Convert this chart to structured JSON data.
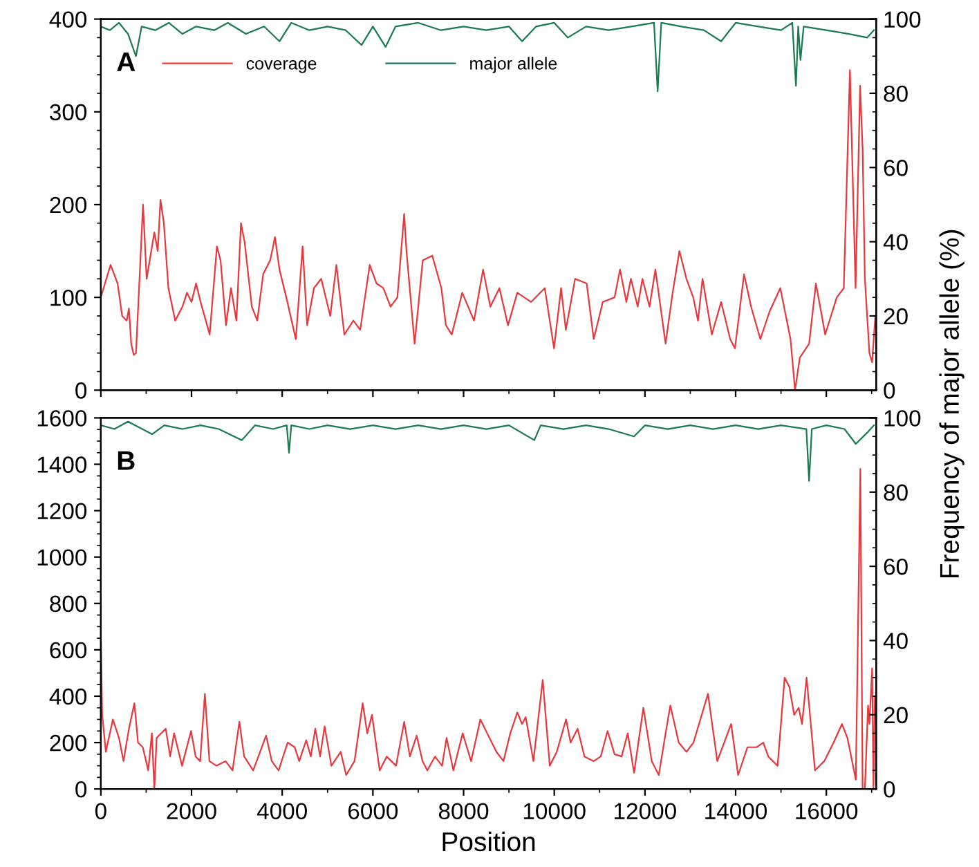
{
  "chart_data": [
    {
      "type": "line",
      "xlim": [
        0,
        17100
      ],
      "xticks": [
        0,
        2000,
        4000,
        6000,
        8000,
        10000,
        12000,
        14000,
        16000
      ],
      "ylim": [
        0,
        400
      ],
      "yticks": [
        0,
        100,
        200,
        300,
        400
      ],
      "y2lim": [
        0,
        100
      ],
      "y2ticks": [
        0,
        20,
        40,
        60,
        80,
        100
      ],
      "y2label": "Frequency of major allele (%)",
      "tick_labels": "y",
      "grid": false,
      "legend": "top left",
      "annotations": [
        "A"
      ],
      "series": [
        {
          "name": "coverage",
          "color": "#e8383d",
          "x": [
            0,
            60,
            215,
            370,
            470,
            570,
            620,
            670,
            725,
            775,
            930,
            1010,
            1180,
            1255,
            1315,
            1390,
            1490,
            1640,
            1800,
            1900,
            2000,
            2100,
            2200,
            2400,
            2560,
            2640,
            2760,
            2870,
            2990,
            3090,
            3170,
            3330,
            3450,
            3580,
            3735,
            3840,
            3940,
            4090,
            4300,
            4450,
            4550,
            4700,
            4860,
            5060,
            5195,
            5370,
            5570,
            5720,
            5930,
            6080,
            6230,
            6390,
            6540,
            6690,
            6740,
            6920,
            7100,
            7310,
            7510,
            7610,
            7740,
            7970,
            8230,
            8430,
            8590,
            8790,
            8980,
            9185,
            9490,
            9790,
            9995,
            10150,
            10255,
            10460,
            10715,
            10870,
            11070,
            11330,
            11450,
            11590,
            11690,
            11840,
            11945,
            12100,
            12230,
            12455,
            12610,
            12760,
            12915,
            13065,
            13170,
            13270,
            13475,
            13680,
            13880,
            13985,
            14185,
            14340,
            14545,
            14750,
            14985,
            15210,
            15310,
            15415,
            15620,
            15770,
            15975,
            16230,
            16385,
            16520,
            16645,
            16745,
            16800,
            16850,
            16950,
            17010,
            17080
          ],
          "values": [
            100,
            110,
            135,
            115,
            80,
            75,
            88,
            50,
            38,
            40,
            200,
            120,
            170,
            150,
            205,
            180,
            110,
            75,
            90,
            105,
            95,
            115,
            95,
            60,
            155,
            140,
            70,
            110,
            75,
            180,
            160,
            90,
            75,
            125,
            140,
            165,
            130,
            100,
            55,
            155,
            70,
            110,
            120,
            80,
            135,
            60,
            75,
            65,
            135,
            115,
            110,
            90,
            100,
            190,
            150,
            50,
            140,
            145,
            110,
            70,
            60,
            105,
            75,
            130,
            90,
            110,
            70,
            105,
            95,
            110,
            45,
            110,
            65,
            120,
            115,
            55,
            95,
            100,
            130,
            95,
            120,
            90,
            120,
            90,
            130,
            50,
            105,
            150,
            120,
            100,
            75,
            120,
            60,
            95,
            55,
            45,
            125,
            90,
            55,
            85,
            110,
            55,
            0,
            35,
            50,
            115,
            60,
            100,
            110,
            345,
            110,
            328,
            260,
            120,
            40,
            30,
            80
          ]
        },
        {
          "name": "major allele",
          "color": "#1a7a50",
          "axis": "y2",
          "x": [
            0,
            200,
            400,
            600,
            775,
            900,
            1200,
            1500,
            1800,
            2100,
            2500,
            2800,
            3200,
            3600,
            3940,
            4200,
            4600,
            5000,
            5400,
            5750,
            6000,
            6280,
            6500,
            7000,
            7500,
            8000,
            8500,
            9000,
            9290,
            9600,
            10000,
            10300,
            10700,
            11200,
            11700,
            12200,
            12280,
            12360,
            12800,
            13300,
            13680,
            14000,
            14500,
            15000,
            15250,
            15330,
            15380,
            15430,
            15500,
            16000,
            16500,
            16900,
            17050
          ],
          "values": [
            98,
            97,
            99,
            96,
            90,
            98,
            97,
            99,
            96,
            98,
            97,
            99,
            96,
            98,
            94,
            99,
            97,
            98,
            97,
            93,
            98,
            92.5,
            98,
            99,
            97,
            98,
            97,
            98,
            94,
            98,
            99,
            95,
            98,
            97,
            98,
            99,
            80.5,
            99,
            98,
            97,
            94,
            99,
            98,
            97,
            99,
            82,
            98,
            89,
            98,
            97,
            96,
            95,
            97
          ]
        }
      ]
    },
    {
      "type": "line",
      "xlim": [
        0,
        17100
      ],
      "xticks": [
        0,
        2000,
        4000,
        6000,
        8000,
        10000,
        12000,
        14000,
        16000
      ],
      "ylim": [
        0,
        1600
      ],
      "yticks": [
        0,
        200,
        400,
        600,
        800,
        1000,
        1200,
        1400,
        1600
      ],
      "y2lim": [
        0,
        100
      ],
      "y2ticks": [
        0,
        20,
        40,
        60,
        80,
        100
      ],
      "xlabel": "Position",
      "grid": false,
      "annotations": [
        "B"
      ],
      "series": [
        {
          "color": "#e8383d",
          "x": [
            0,
            30,
            110,
            265,
            400,
            500,
            620,
            740,
            820,
            925,
            1045,
            1125,
            1180,
            1230,
            1430,
            1530,
            1615,
            1790,
            1990,
            2090,
            2190,
            2295,
            2395,
            2550,
            2750,
            2905,
            3055,
            3160,
            3360,
            3645,
            3770,
            3920,
            4120,
            4275,
            4375,
            4530,
            4630,
            4730,
            4835,
            4935,
            5085,
            5290,
            5410,
            5595,
            5775,
            5875,
            5980,
            6150,
            6305,
            6510,
            6690,
            6815,
            6965,
            7095,
            7200,
            7370,
            7525,
            7625,
            7775,
            7980,
            8165,
            8370,
            8520,
            8725,
            8880,
            9030,
            9185,
            9290,
            9370,
            9540,
            9745,
            9900,
            10055,
            10260,
            10360,
            10515,
            10665,
            10870,
            11025,
            11175,
            11330,
            11485,
            11620,
            11760,
            11965,
            12150,
            12305,
            12455,
            12560,
            12745,
            12915,
            13070,
            13390,
            13595,
            13900,
            14055,
            14260,
            14460,
            14610,
            14720,
            14925,
            15080,
            15185,
            15290,
            15390,
            15465,
            15565,
            15750,
            15955,
            16160,
            16345,
            16465,
            16650,
            16750,
            16800,
            16850,
            16920,
            16950,
            17010,
            17040,
            17070
          ],
          "values": [
            680,
            320,
            160,
            300,
            220,
            120,
            260,
            370,
            200,
            180,
            80,
            240,
            0,
            220,
            260,
            140,
            240,
            100,
            250,
            140,
            120,
            410,
            120,
            100,
            120,
            80,
            290,
            140,
            80,
            230,
            120,
            80,
            200,
            180,
            120,
            210,
            140,
            260,
            140,
            270,
            100,
            160,
            60,
            120,
            370,
            240,
            320,
            80,
            140,
            100,
            290,
            140,
            230,
            120,
            80,
            140,
            100,
            220,
            80,
            240,
            120,
            300,
            240,
            160,
            120,
            240,
            330,
            280,
            310,
            120,
            470,
            100,
            160,
            300,
            200,
            260,
            140,
            120,
            140,
            250,
            150,
            140,
            240,
            70,
            350,
            120,
            60,
            240,
            360,
            200,
            160,
            200,
            410,
            120,
            280,
            60,
            180,
            180,
            200,
            140,
            100,
            480,
            440,
            320,
            350,
            280,
            480,
            80,
            120,
            200,
            280,
            220,
            40,
            1380,
            0,
            0,
            360,
            280,
            520,
            0,
            400
          ]
        },
        {
          "color": "#1a7a50",
          "axis": "y2",
          "x": [
            0,
            300,
            600,
            1130,
            1400,
            1800,
            2200,
            2600,
            3110,
            3400,
            3800,
            4100,
            4150,
            4200,
            4600,
            5000,
            5500,
            6000,
            6500,
            7000,
            7500,
            8000,
            8500,
            9000,
            9560,
            9700,
            10200,
            10700,
            11200,
            11760,
            12000,
            12500,
            13000,
            13500,
            14000,
            14500,
            15000,
            15560,
            15620,
            15680,
            16000,
            16400,
            16650,
            16900,
            17050
          ],
          "values": [
            98,
            97,
            99,
            95.6,
            98,
            97,
            98,
            97,
            94,
            98,
            97,
            98,
            90.6,
            98,
            97,
            98,
            97,
            98,
            97,
            98,
            97,
            98,
            97,
            98,
            94,
            98,
            97,
            98,
            97,
            95,
            98,
            97,
            98,
            97,
            98,
            97,
            98,
            97,
            83,
            97,
            98,
            97,
            93,
            96,
            98
          ]
        }
      ]
    }
  ]
}
